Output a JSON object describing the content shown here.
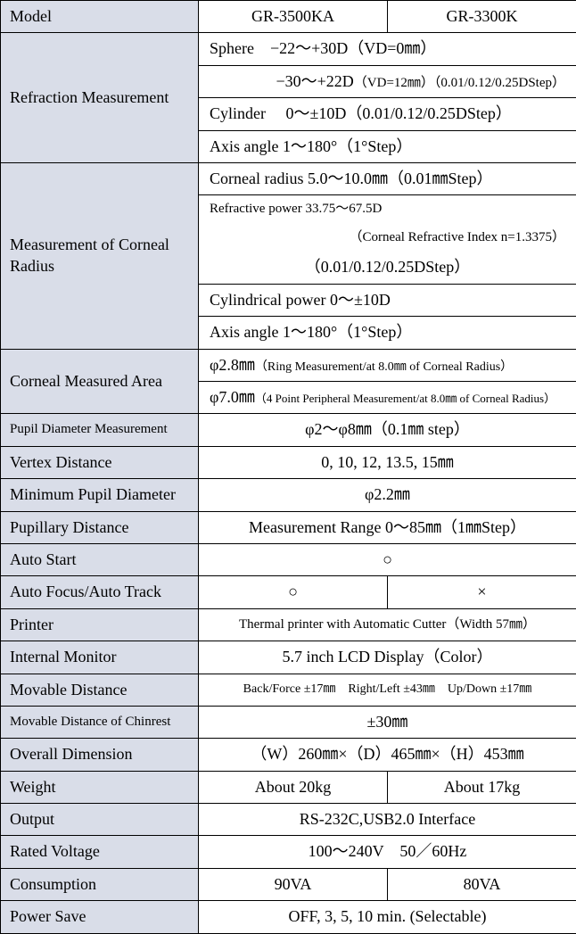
{
  "colors": {
    "label_bg": "#d9dde8",
    "val_bg": "#ffffff",
    "border": "#000000",
    "text": "#000000"
  },
  "header": {
    "model": "Model",
    "col1": "GR-3500KA",
    "col2": "GR-3300K"
  },
  "rows": {
    "refraction": {
      "label": "Refraction Measurement",
      "r1": "Sphere　−22〜+30D（VD=0㎜）",
      "r2a": "−30〜+22D",
      "r2b": "（VD=12㎜）（0.01/0.12/0.25DStep）",
      "r3": "Cylinder　 0〜±10D（0.01/0.12/0.25DStep）",
      "r4": "Axis angle 1〜180°（1°Step）"
    },
    "corneal_radius": {
      "label": "Measurement of Corneal Radius",
      "r1": "Corneal radius 5.0〜10.0㎜（0.01㎜Step）",
      "r2": "Refractive power 33.75〜67.5D",
      "r3": "（Corneal Refractive Index n=1.3375）",
      "r4": "（0.01/0.12/0.25DStep）",
      "r5": "Cylindrical power  0〜±10D",
      "r6": "Axis angle 1〜180°（1°Step）"
    },
    "measured_area": {
      "label": "Corneal Measured Area",
      "r1a": "φ2.8㎜",
      "r1b": "（Ring Measurement/at 8.0㎜ of Corneal Radius）",
      "r2a": "φ7.0㎜",
      "r2b": "（4 Point Peripheral Measurement/at 8.0㎜ of Corneal Radius）"
    },
    "pupil_diameter_meas": {
      "label": "Pupil Diameter Measurement",
      "val": "φ2〜φ8㎜（0.1㎜ step）"
    },
    "vertex": {
      "label": "Vertex Distance",
      "val": "0, 10, 12, 13.5, 15㎜"
    },
    "min_pupil": {
      "label": "Minimum Pupil Diameter",
      "val": "φ2.2㎜"
    },
    "pupillary": {
      "label": "Pupillary Distance",
      "val": "Measurement Range 0〜85㎜（1㎜Step）"
    },
    "auto_start": {
      "label": "Auto Start",
      "val": "○"
    },
    "auto_focus": {
      "label": "Auto Focus/Auto Track",
      "c1": "○",
      "c2": "×"
    },
    "printer": {
      "label": "Printer",
      "val": "Thermal printer with Automatic Cutter（Width 57㎜）"
    },
    "monitor": {
      "label": "Internal Monitor",
      "val": "5.7 inch LCD Display（Color）"
    },
    "movable": {
      "label": "Movable Distance",
      "val": "Back/Force ±17㎜　Right/Left ±43㎜　Up/Down ±17㎜"
    },
    "chinrest": {
      "label": "Movable Distance of Chinrest",
      "val": "±30㎜"
    },
    "dimension": {
      "label": "Overall Dimension",
      "val": "（W）260㎜×（D）465㎜×（H）453㎜"
    },
    "weight": {
      "label": "Weight",
      "c1": "About 20kg",
      "c2": "About 17kg"
    },
    "output": {
      "label": "Output",
      "val": "RS-232C,USB2.0 Interface"
    },
    "voltage": {
      "label": "Rated Voltage",
      "val": "100〜240V　50／60Hz"
    },
    "consumption": {
      "label": "Consumption",
      "c1": "90VA",
      "c2": "80VA"
    },
    "power_save": {
      "label": "Power Save",
      "val": "OFF, 3, 5, 10 min. (Selectable)"
    }
  }
}
